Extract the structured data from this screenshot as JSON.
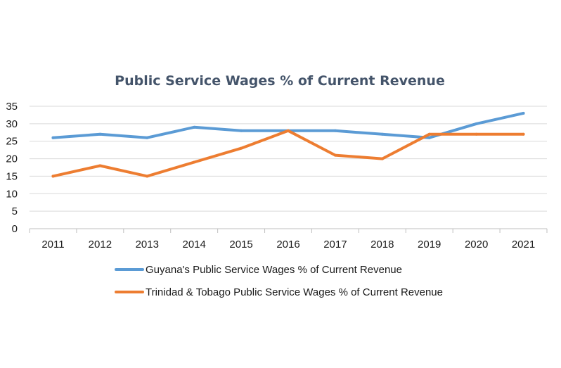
{
  "chart_data": {
    "type": "line",
    "title": "Public Service Wages % of Current Revenue",
    "xlabel": "",
    "ylabel": "",
    "categories": [
      "2011",
      "2012",
      "2013",
      "2014",
      "2015",
      "2016",
      "2017",
      "2018",
      "2019",
      "2020",
      "2021"
    ],
    "ylim": [
      0,
      35
    ],
    "yticks": [
      "0",
      "5",
      "10",
      "15",
      "20",
      "25",
      "30",
      "35"
    ],
    "grid": true,
    "legend_position": "bottom",
    "series": [
      {
        "name": "Guyana's Public Service Wages % of Current Revenue",
        "color": "#5b9bd5",
        "values": [
          26,
          27,
          26,
          29,
          28,
          28,
          28,
          27,
          26,
          30,
          33
        ]
      },
      {
        "name": "Trinidad & Tobago Public Service Wages % of Current Revenue",
        "color": "#ed7d31",
        "values": [
          15,
          18,
          15,
          19,
          23,
          28,
          21,
          20,
          27,
          27,
          27
        ]
      }
    ]
  }
}
